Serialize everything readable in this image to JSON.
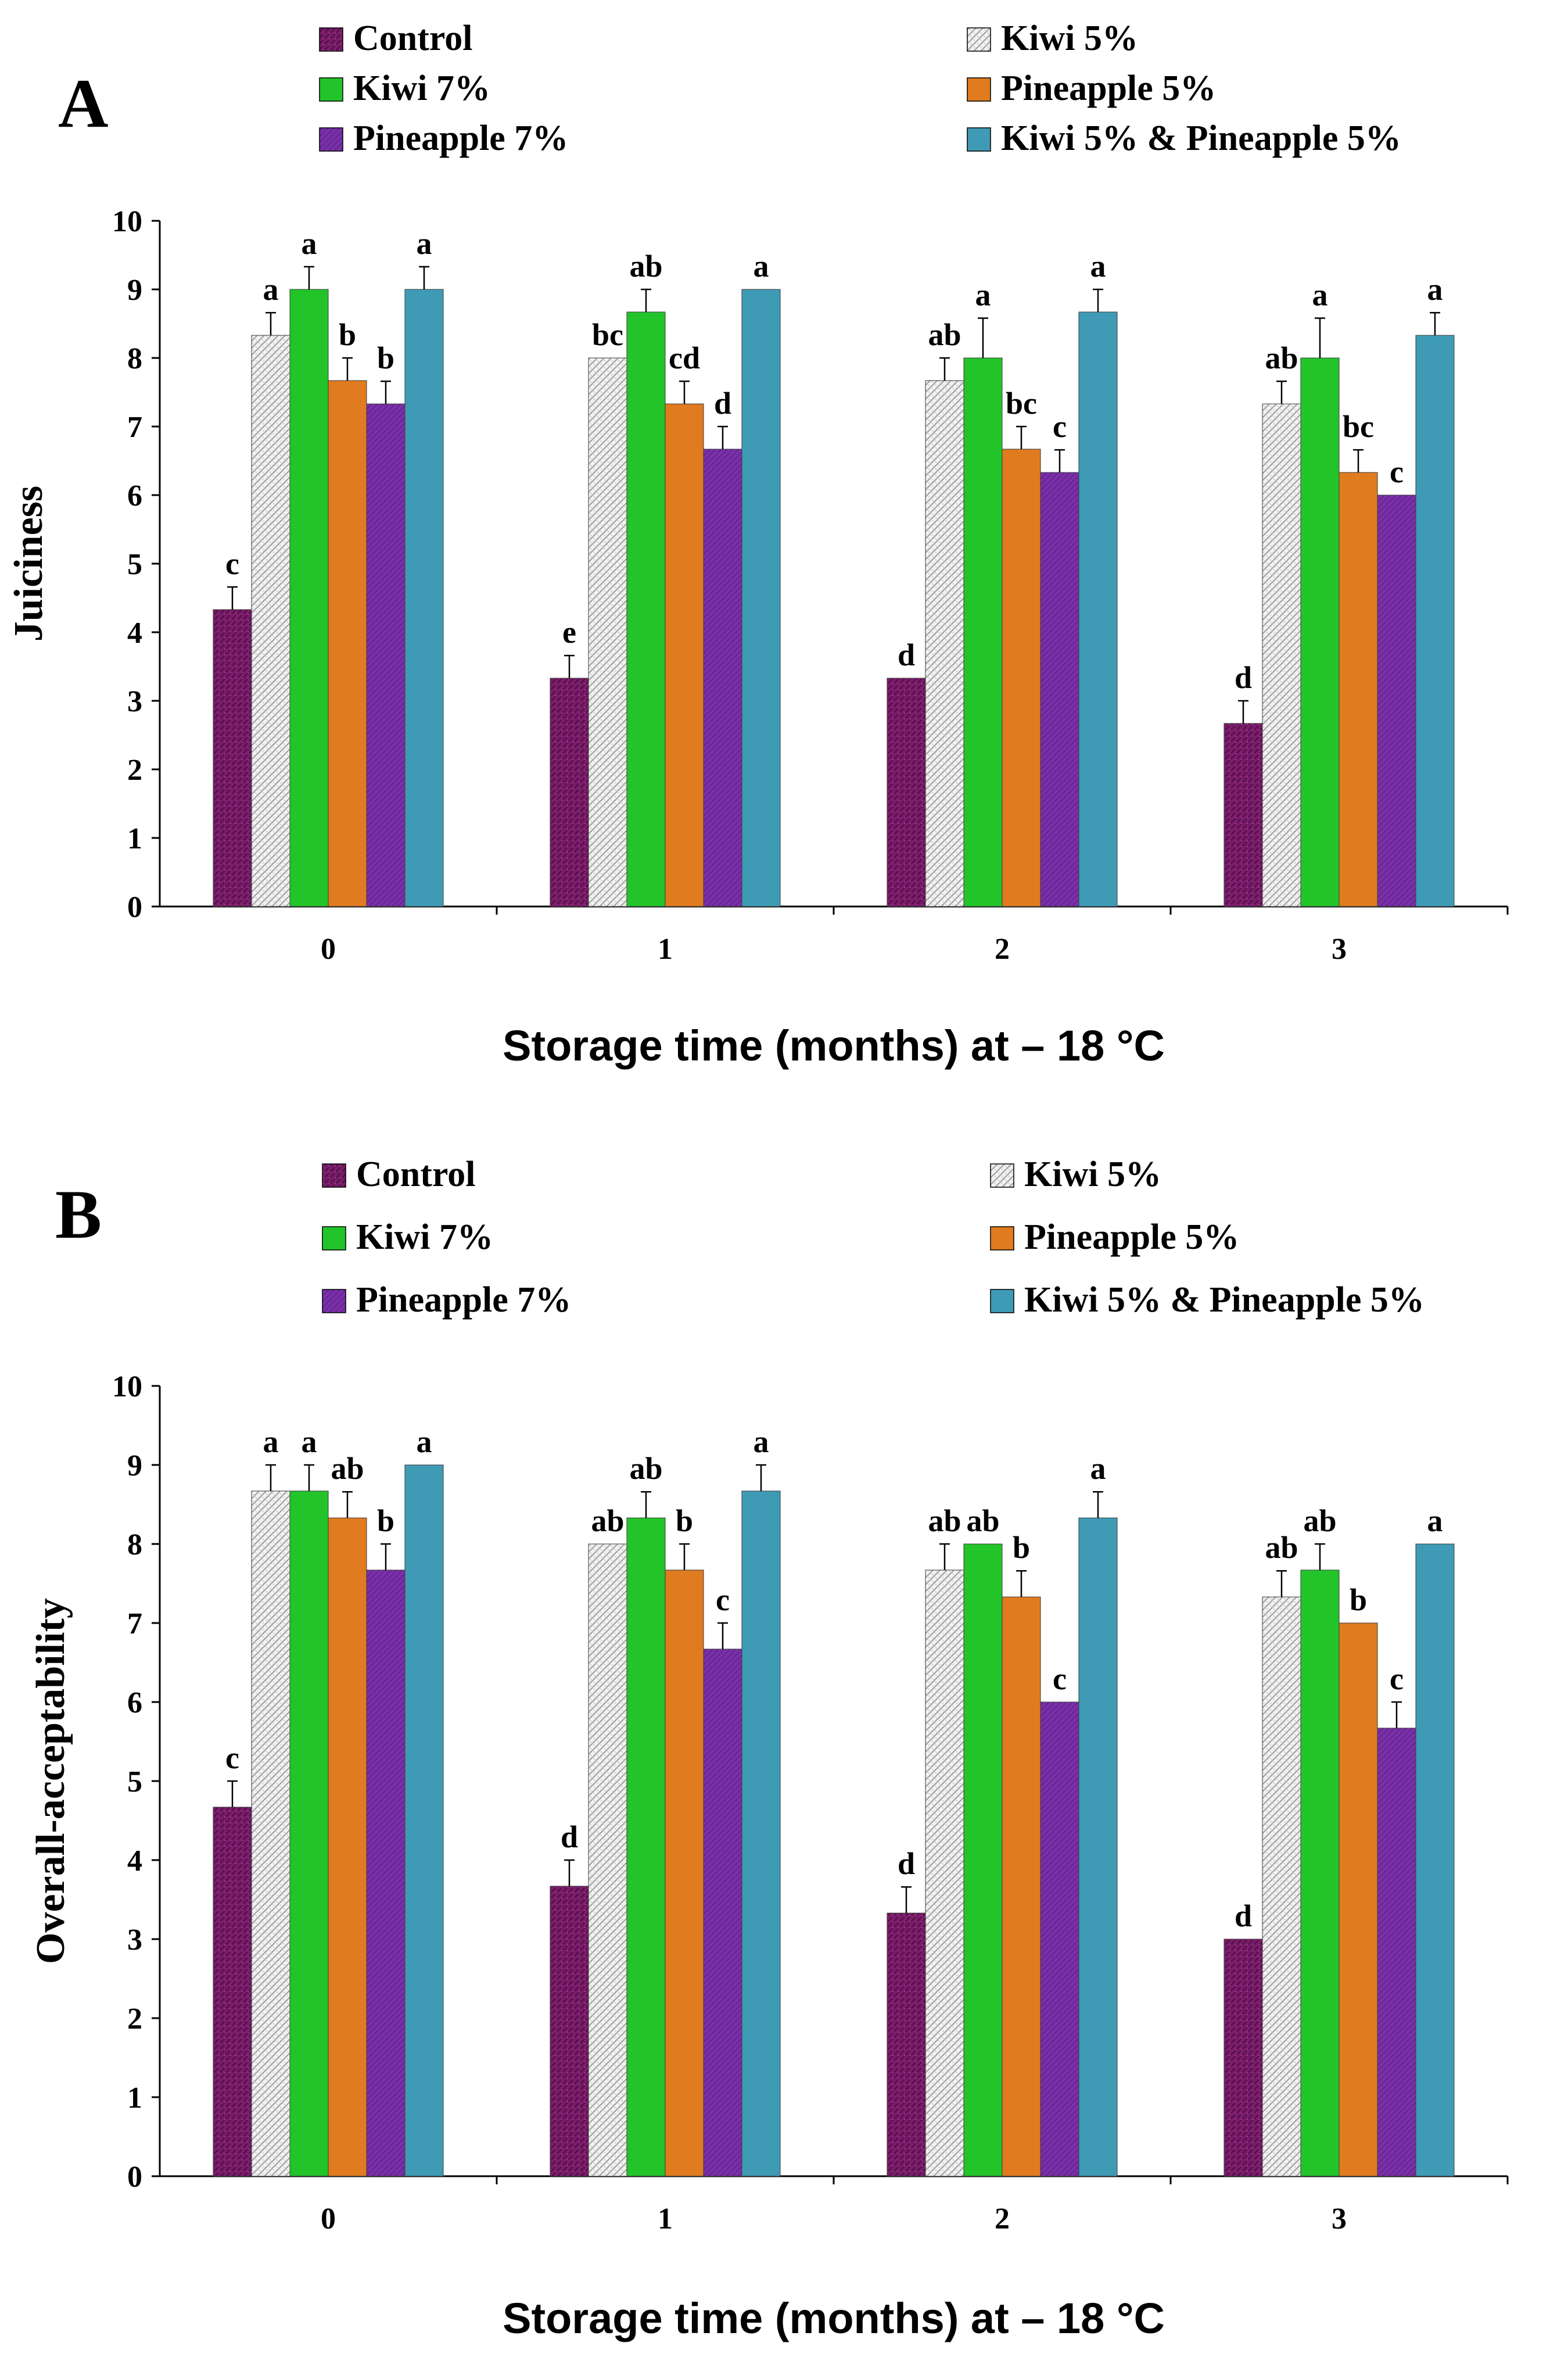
{
  "figure": "chart-figure",
  "colors": {
    "control": "#7B1C6B",
    "kiwi5": "#E6E6E6",
    "kiwi7": "#22C42A",
    "pineapple5": "#E07B1F",
    "pineapple7": "#7A30A8",
    "mix": "#3F9BB5",
    "axis": "#000000"
  },
  "chart_data": [
    {
      "type": "bar",
      "panel_label": "A",
      "title": "",
      "xlabel": "Storage time (months) at – 18 °C",
      "ylabel": "Juiciness",
      "ylim": [
        0,
        10
      ],
      "yticks": [
        "0",
        "1",
        "2",
        "3",
        "4",
        "5",
        "6",
        "7",
        "8",
        "9",
        "10"
      ],
      "categories": [
        "0",
        "1",
        "2",
        "3"
      ],
      "legend_position": "top",
      "series": [
        {
          "name": "Control",
          "key": "control",
          "values": [
            4.33,
            3.33,
            3.33,
            2.67
          ],
          "errors": [
            0.33,
            0.33,
            0,
            0.33
          ],
          "letters": [
            "c",
            "e",
            "d",
            "d"
          ]
        },
        {
          "name": "Kiwi 5%",
          "key": "kiwi5",
          "values": [
            8.33,
            8.0,
            7.67,
            7.33
          ],
          "errors": [
            0.33,
            0,
            0.33,
            0.33
          ],
          "letters": [
            "a",
            "bc",
            "ab",
            "ab"
          ]
        },
        {
          "name": "Kiwi 7%",
          "key": "kiwi7",
          "values": [
            9.0,
            8.67,
            8.0,
            8.0
          ],
          "errors": [
            0.33,
            0.33,
            0.58,
            0.58
          ],
          "letters": [
            "a",
            "ab",
            "a",
            "a"
          ]
        },
        {
          "name": "Pineapple 5%",
          "key": "pineapple5",
          "values": [
            7.67,
            7.33,
            6.67,
            6.33
          ],
          "errors": [
            0.33,
            0.33,
            0.33,
            0.33
          ],
          "letters": [
            "b",
            "cd",
            "bc",
            "bc"
          ]
        },
        {
          "name": "Pineapple 7%",
          "key": "pineapple7",
          "values": [
            7.33,
            6.67,
            6.33,
            6.0
          ],
          "errors": [
            0.33,
            0.33,
            0.33,
            0
          ],
          "letters": [
            "b",
            "d",
            "c",
            "c"
          ]
        },
        {
          "name": "Kiwi 5% & Pineapple 5%",
          "key": "mix",
          "values": [
            9.0,
            9.0,
            8.67,
            8.33
          ],
          "errors": [
            0.33,
            0,
            0.33,
            0.33
          ],
          "letters": [
            "a",
            "a",
            "a",
            "a"
          ]
        }
      ]
    },
    {
      "type": "bar",
      "panel_label": "B",
      "title": "",
      "xlabel": "Storage time (months) at – 18 °C",
      "ylabel": "Overall-acceptability",
      "ylim": [
        0,
        10
      ],
      "yticks": [
        "0",
        "1",
        "2",
        "3",
        "4",
        "5",
        "6",
        "7",
        "8",
        "9",
        "10"
      ],
      "categories": [
        "0",
        "1",
        "2",
        "3"
      ],
      "legend_position": "top",
      "series": [
        {
          "name": "Control",
          "key": "control",
          "values": [
            4.67,
            3.67,
            3.33,
            3.0
          ],
          "errors": [
            0.33,
            0.33,
            0.33,
            0
          ],
          "letters": [
            "c",
            "d",
            "d",
            "d"
          ]
        },
        {
          "name": "Kiwi 5%",
          "key": "kiwi5",
          "values": [
            8.67,
            8.0,
            7.67,
            7.33
          ],
          "errors": [
            0.33,
            0,
            0.33,
            0.33
          ],
          "letters": [
            "a",
            "ab",
            "ab",
            "ab"
          ]
        },
        {
          "name": "Kiwi 7%",
          "key": "kiwi7",
          "values": [
            8.67,
            8.33,
            8.0,
            7.67
          ],
          "errors": [
            0.33,
            0.33,
            0,
            0.33
          ],
          "letters": [
            "a",
            "ab",
            "ab",
            "ab"
          ]
        },
        {
          "name": "Pineapple 5%",
          "key": "pineapple5",
          "values": [
            8.33,
            7.67,
            7.33,
            7.0
          ],
          "errors": [
            0.33,
            0.33,
            0.33,
            0
          ],
          "letters": [
            "ab",
            "b",
            "b",
            "b"
          ]
        },
        {
          "name": "Pineapple 7%",
          "key": "pineapple7",
          "values": [
            7.67,
            6.67,
            6.0,
            5.67
          ],
          "errors": [
            0.33,
            0.33,
            0,
            0.33
          ],
          "letters": [
            "b",
            "c",
            "c",
            "c"
          ]
        },
        {
          "name": "Kiwi 5% & Pineapple 5%",
          "key": "mix",
          "values": [
            9.0,
            8.67,
            8.33,
            8.0
          ],
          "errors": [
            0,
            0.33,
            0.33,
            0
          ],
          "letters": [
            "a",
            "a",
            "a",
            "a"
          ]
        }
      ]
    }
  ]
}
